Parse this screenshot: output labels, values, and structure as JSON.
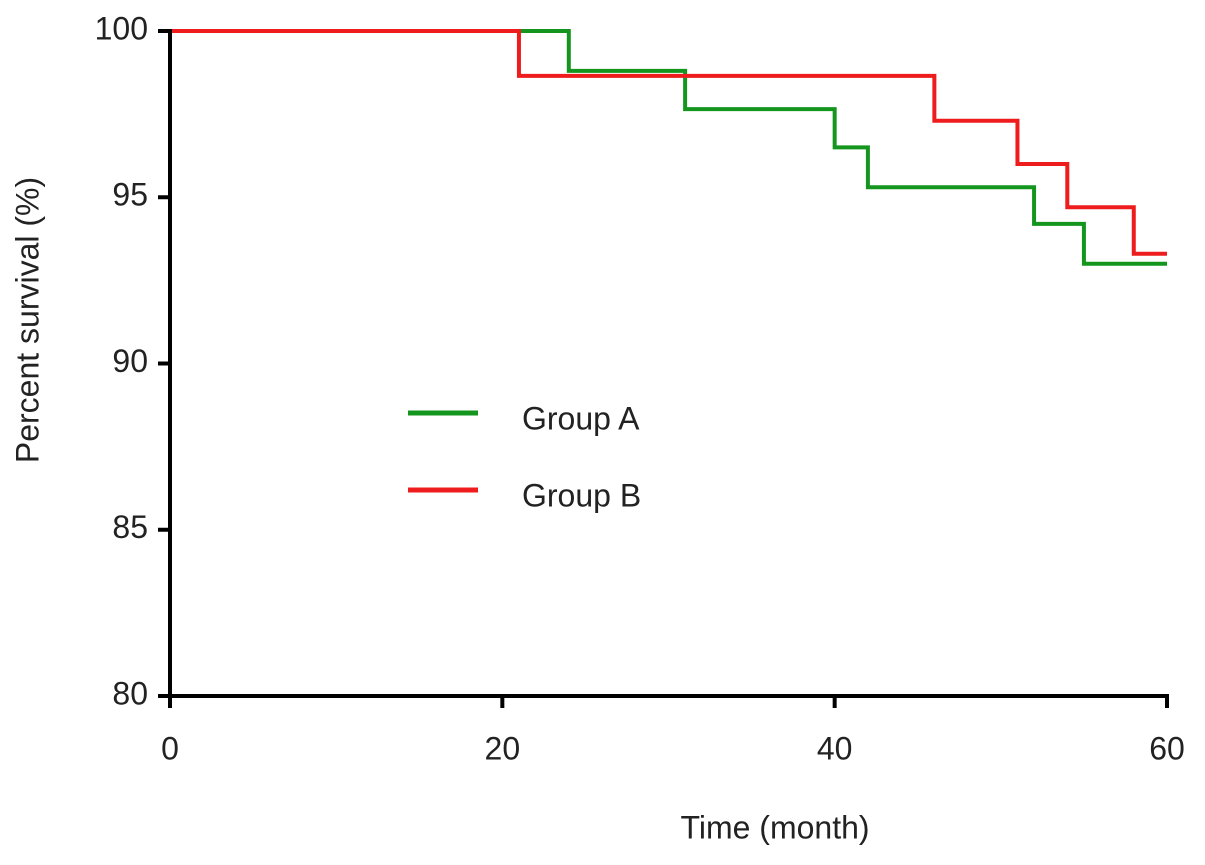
{
  "chart_data": {
    "type": "step",
    "x_label": "Time (month)",
    "y_label": "Percent survival (%)",
    "xlim": [
      0,
      60
    ],
    "xticks": [
      0,
      20,
      40,
      60
    ],
    "ylim": [
      80,
      100
    ],
    "yticks": [
      80,
      85,
      90,
      95,
      100
    ],
    "grid": false,
    "series": [
      {
        "name": "Group A",
        "color": "#14961e",
        "x": [
          0,
          24,
          31,
          40,
          42,
          52,
          55,
          60
        ],
        "values": [
          100,
          98.8,
          97.65,
          96.5,
          95.3,
          94.2,
          93.0,
          93.0
        ]
      },
      {
        "name": "Group B",
        "color": "#ee1c1c",
        "x": [
          0,
          21,
          46,
          51,
          54,
          58,
          60
        ],
        "values": [
          100,
          98.65,
          97.3,
          96.0,
          94.7,
          93.3,
          93.3
        ]
      }
    ]
  }
}
